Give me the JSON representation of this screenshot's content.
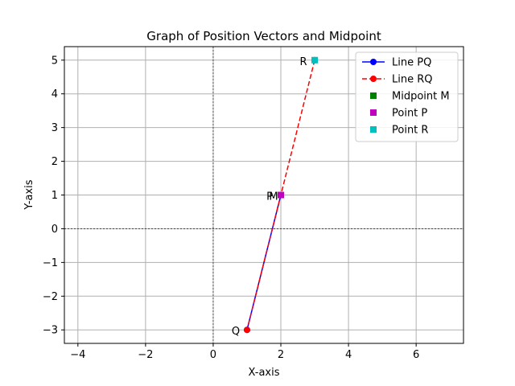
{
  "chart_data": {
    "type": "line",
    "title": "Graph of Position Vectors and Midpoint",
    "xlabel": "X-axis",
    "ylabel": "Y-axis",
    "xlim": [
      -4.4,
      7.4
    ],
    "ylim": [
      -3.4,
      5.4
    ],
    "xticks": [
      -4,
      -2,
      0,
      2,
      4,
      6
    ],
    "yticks": [
      -3,
      -2,
      -1,
      0,
      1,
      2,
      3,
      4,
      5
    ],
    "xtick_labels": [
      "−4",
      "−2",
      "0",
      "2",
      "4",
      "6"
    ],
    "ytick_labels": [
      "−3",
      "−2",
      "−1",
      "0",
      "1",
      "2",
      "3",
      "4",
      "5"
    ],
    "grid": true,
    "zero_lines": true,
    "legend_position": "top-right",
    "series": [
      {
        "name": "Line PQ",
        "style": "solid-line-circle-markers",
        "color": "#0000ff",
        "marker_color": "#0000ff",
        "points": [
          {
            "x": 2,
            "y": 1
          },
          {
            "x": 1,
            "y": -3
          }
        ]
      },
      {
        "name": "Line RQ",
        "style": "dashed-line-circle-markers",
        "color": "#ff0000",
        "marker_color": "#ff0000",
        "points": [
          {
            "x": 3,
            "y": 5
          },
          {
            "x": 1,
            "y": -3
          }
        ]
      },
      {
        "name": "Midpoint M",
        "style": "square-marker",
        "color": "#008000",
        "points": [
          {
            "x": 2,
            "y": 1
          }
        ]
      },
      {
        "name": "Point P",
        "style": "square-marker",
        "color": "#bf00bf",
        "points": [
          {
            "x": 2,
            "y": 1
          }
        ]
      },
      {
        "name": "Point R",
        "style": "square-marker",
        "color": "#00bfbf",
        "points": [
          {
            "x": 3,
            "y": 5
          }
        ]
      }
    ],
    "point_labels": [
      {
        "text": "P",
        "x": 2,
        "y": 1
      },
      {
        "text": "M",
        "x": 2,
        "y": 1
      },
      {
        "text": "Q",
        "x": 1,
        "y": -3
      },
      {
        "text": "R",
        "x": 3,
        "y": 5
      }
    ]
  }
}
